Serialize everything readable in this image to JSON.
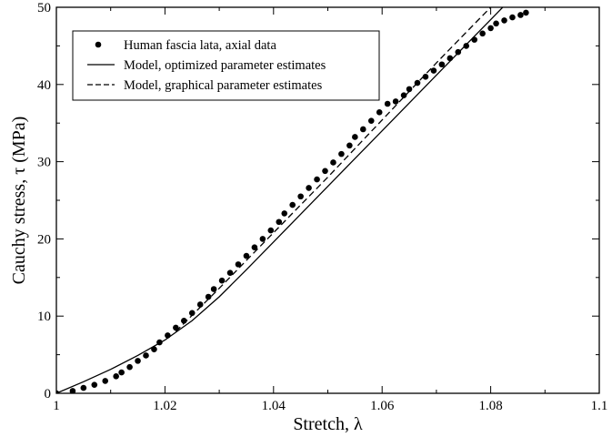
{
  "chart_data": {
    "type": "scatter",
    "xlabel": "Stretch,  λ",
    "ylabel": "Cauchy stress,  τ  (MPa)",
    "xlim": [
      1.0,
      1.1
    ],
    "ylim": [
      0,
      50
    ],
    "xticks": [
      1,
      1.02,
      1.04,
      1.06,
      1.08,
      1.1
    ],
    "xtick_labels": [
      "1",
      "1.02",
      "1.04",
      "1.06",
      "1.08",
      "1.1"
    ],
    "yticks": [
      0,
      10,
      20,
      30,
      40,
      50
    ],
    "ytick_labels": [
      "0",
      "10",
      "20",
      "30",
      "40",
      "50"
    ],
    "grid": false,
    "legend_position": "top-left",
    "series": [
      {
        "name": "Human fascia lata, axial data",
        "style": "markers",
        "x": [
          1.0,
          1.003,
          1.005,
          1.007,
          1.009,
          1.011,
          1.012,
          1.0135,
          1.015,
          1.0165,
          1.018,
          1.019,
          1.0205,
          1.022,
          1.0235,
          1.025,
          1.0265,
          1.028,
          1.029,
          1.0305,
          1.032,
          1.0335,
          1.035,
          1.0365,
          1.038,
          1.0395,
          1.041,
          1.042,
          1.0435,
          1.045,
          1.0465,
          1.048,
          1.0495,
          1.051,
          1.0525,
          1.054,
          1.055,
          1.0565,
          1.058,
          1.0595,
          1.061,
          1.0625,
          1.064,
          1.065,
          1.0665,
          1.068,
          1.0695,
          1.071,
          1.0725,
          1.074,
          1.0755,
          1.077,
          1.0785,
          1.08,
          1.081,
          1.0825,
          1.084,
          1.0855,
          1.0865
        ],
        "y": [
          0.0,
          0.3,
          0.7,
          1.1,
          1.6,
          2.2,
          2.7,
          3.4,
          4.2,
          4.9,
          5.7,
          6.6,
          7.5,
          8.5,
          9.4,
          10.4,
          11.5,
          12.5,
          13.5,
          14.6,
          15.6,
          16.7,
          17.8,
          18.9,
          20.0,
          21.1,
          22.2,
          23.3,
          24.4,
          25.5,
          26.6,
          27.7,
          28.8,
          29.9,
          31.0,
          32.1,
          33.2,
          34.2,
          35.3,
          36.4,
          37.5,
          37.8,
          38.6,
          39.4,
          40.2,
          41.0,
          41.8,
          42.6,
          43.4,
          44.2,
          45.0,
          45.8,
          46.6,
          47.3,
          47.9,
          48.3,
          48.7,
          49.0,
          49.3
        ]
      },
      {
        "name": "Model, optimized parameter estimates",
        "style": "solid",
        "x": [
          1.0,
          1.005,
          1.01,
          1.015,
          1.02,
          1.025,
          1.03,
          1.035,
          1.04,
          1.045,
          1.05,
          1.055,
          1.06,
          1.065,
          1.07,
          1.075,
          1.08,
          1.085,
          1.0866
        ],
        "y": [
          0.0,
          1.5,
          3.1,
          4.9,
          6.9,
          9.4,
          12.5,
          16.0,
          19.6,
          23.2,
          26.8,
          30.4,
          34.0,
          37.6,
          41.2,
          44.8,
          48.4,
          52.0,
          53.2
        ]
      },
      {
        "name": "Model, graphical parameter estimates",
        "style": "dashed",
        "x": [
          1.022,
          1.025,
          1.03,
          1.035,
          1.04,
          1.045,
          1.05,
          1.055,
          1.06,
          1.065,
          1.07,
          1.075,
          1.08,
          1.0835
        ],
        "y": [
          8.0,
          10.1,
          13.6,
          17.2,
          20.8,
          24.4,
          28.0,
          31.7,
          35.4,
          39.1,
          42.8,
          46.4,
          50.0,
          52.5
        ]
      }
    ]
  }
}
